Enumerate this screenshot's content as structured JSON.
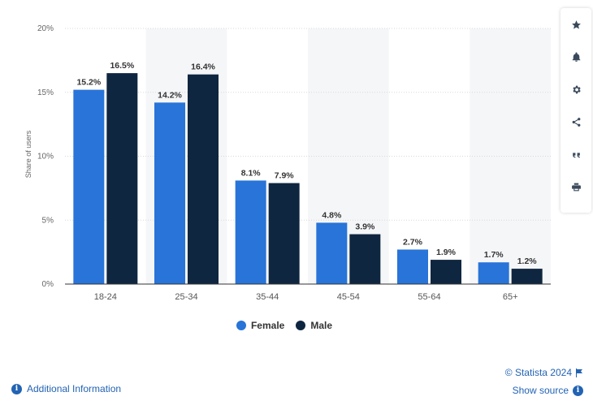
{
  "chart_data": {
    "type": "bar",
    "categories": [
      "18-24",
      "25-34",
      "35-44",
      "45-54",
      "55-64",
      "65+"
    ],
    "series": [
      {
        "name": "Female",
        "values": [
          15.2,
          14.2,
          8.1,
          4.8,
          2.7,
          1.7
        ],
        "labels": [
          "15.2%",
          "14.2%",
          "8.1%",
          "4.8%",
          "2.7%",
          "1.7%"
        ],
        "color": "#2874d8"
      },
      {
        "name": "Male",
        "values": [
          16.5,
          16.4,
          7.9,
          3.9,
          1.9,
          1.2
        ],
        "labels": [
          "16.5%",
          "16.4%",
          "7.9%",
          "3.9%",
          "1.9%",
          "1.2%"
        ],
        "color": "#0f2640"
      }
    ],
    "ylabel": "Share of users",
    "ylim": [
      0,
      20
    ],
    "yticks": [
      0,
      5,
      10,
      15,
      20
    ],
    "ytick_labels": [
      "0%",
      "5%",
      "10%",
      "15%",
      "20%"
    ],
    "grid": true,
    "legend_position": "bottom-center"
  },
  "toolbar": {
    "icons": [
      "star-icon",
      "bell-icon",
      "gear-icon",
      "share-icon",
      "quote-icon",
      "print-icon"
    ]
  },
  "footer": {
    "credit": "© Statista 2024",
    "show_source": "Show source",
    "additional_info": "Additional Information"
  },
  "colors": {
    "female": "#2874d8",
    "male": "#0f2640",
    "link": "#2263b3",
    "band": "#f5f6f8"
  }
}
